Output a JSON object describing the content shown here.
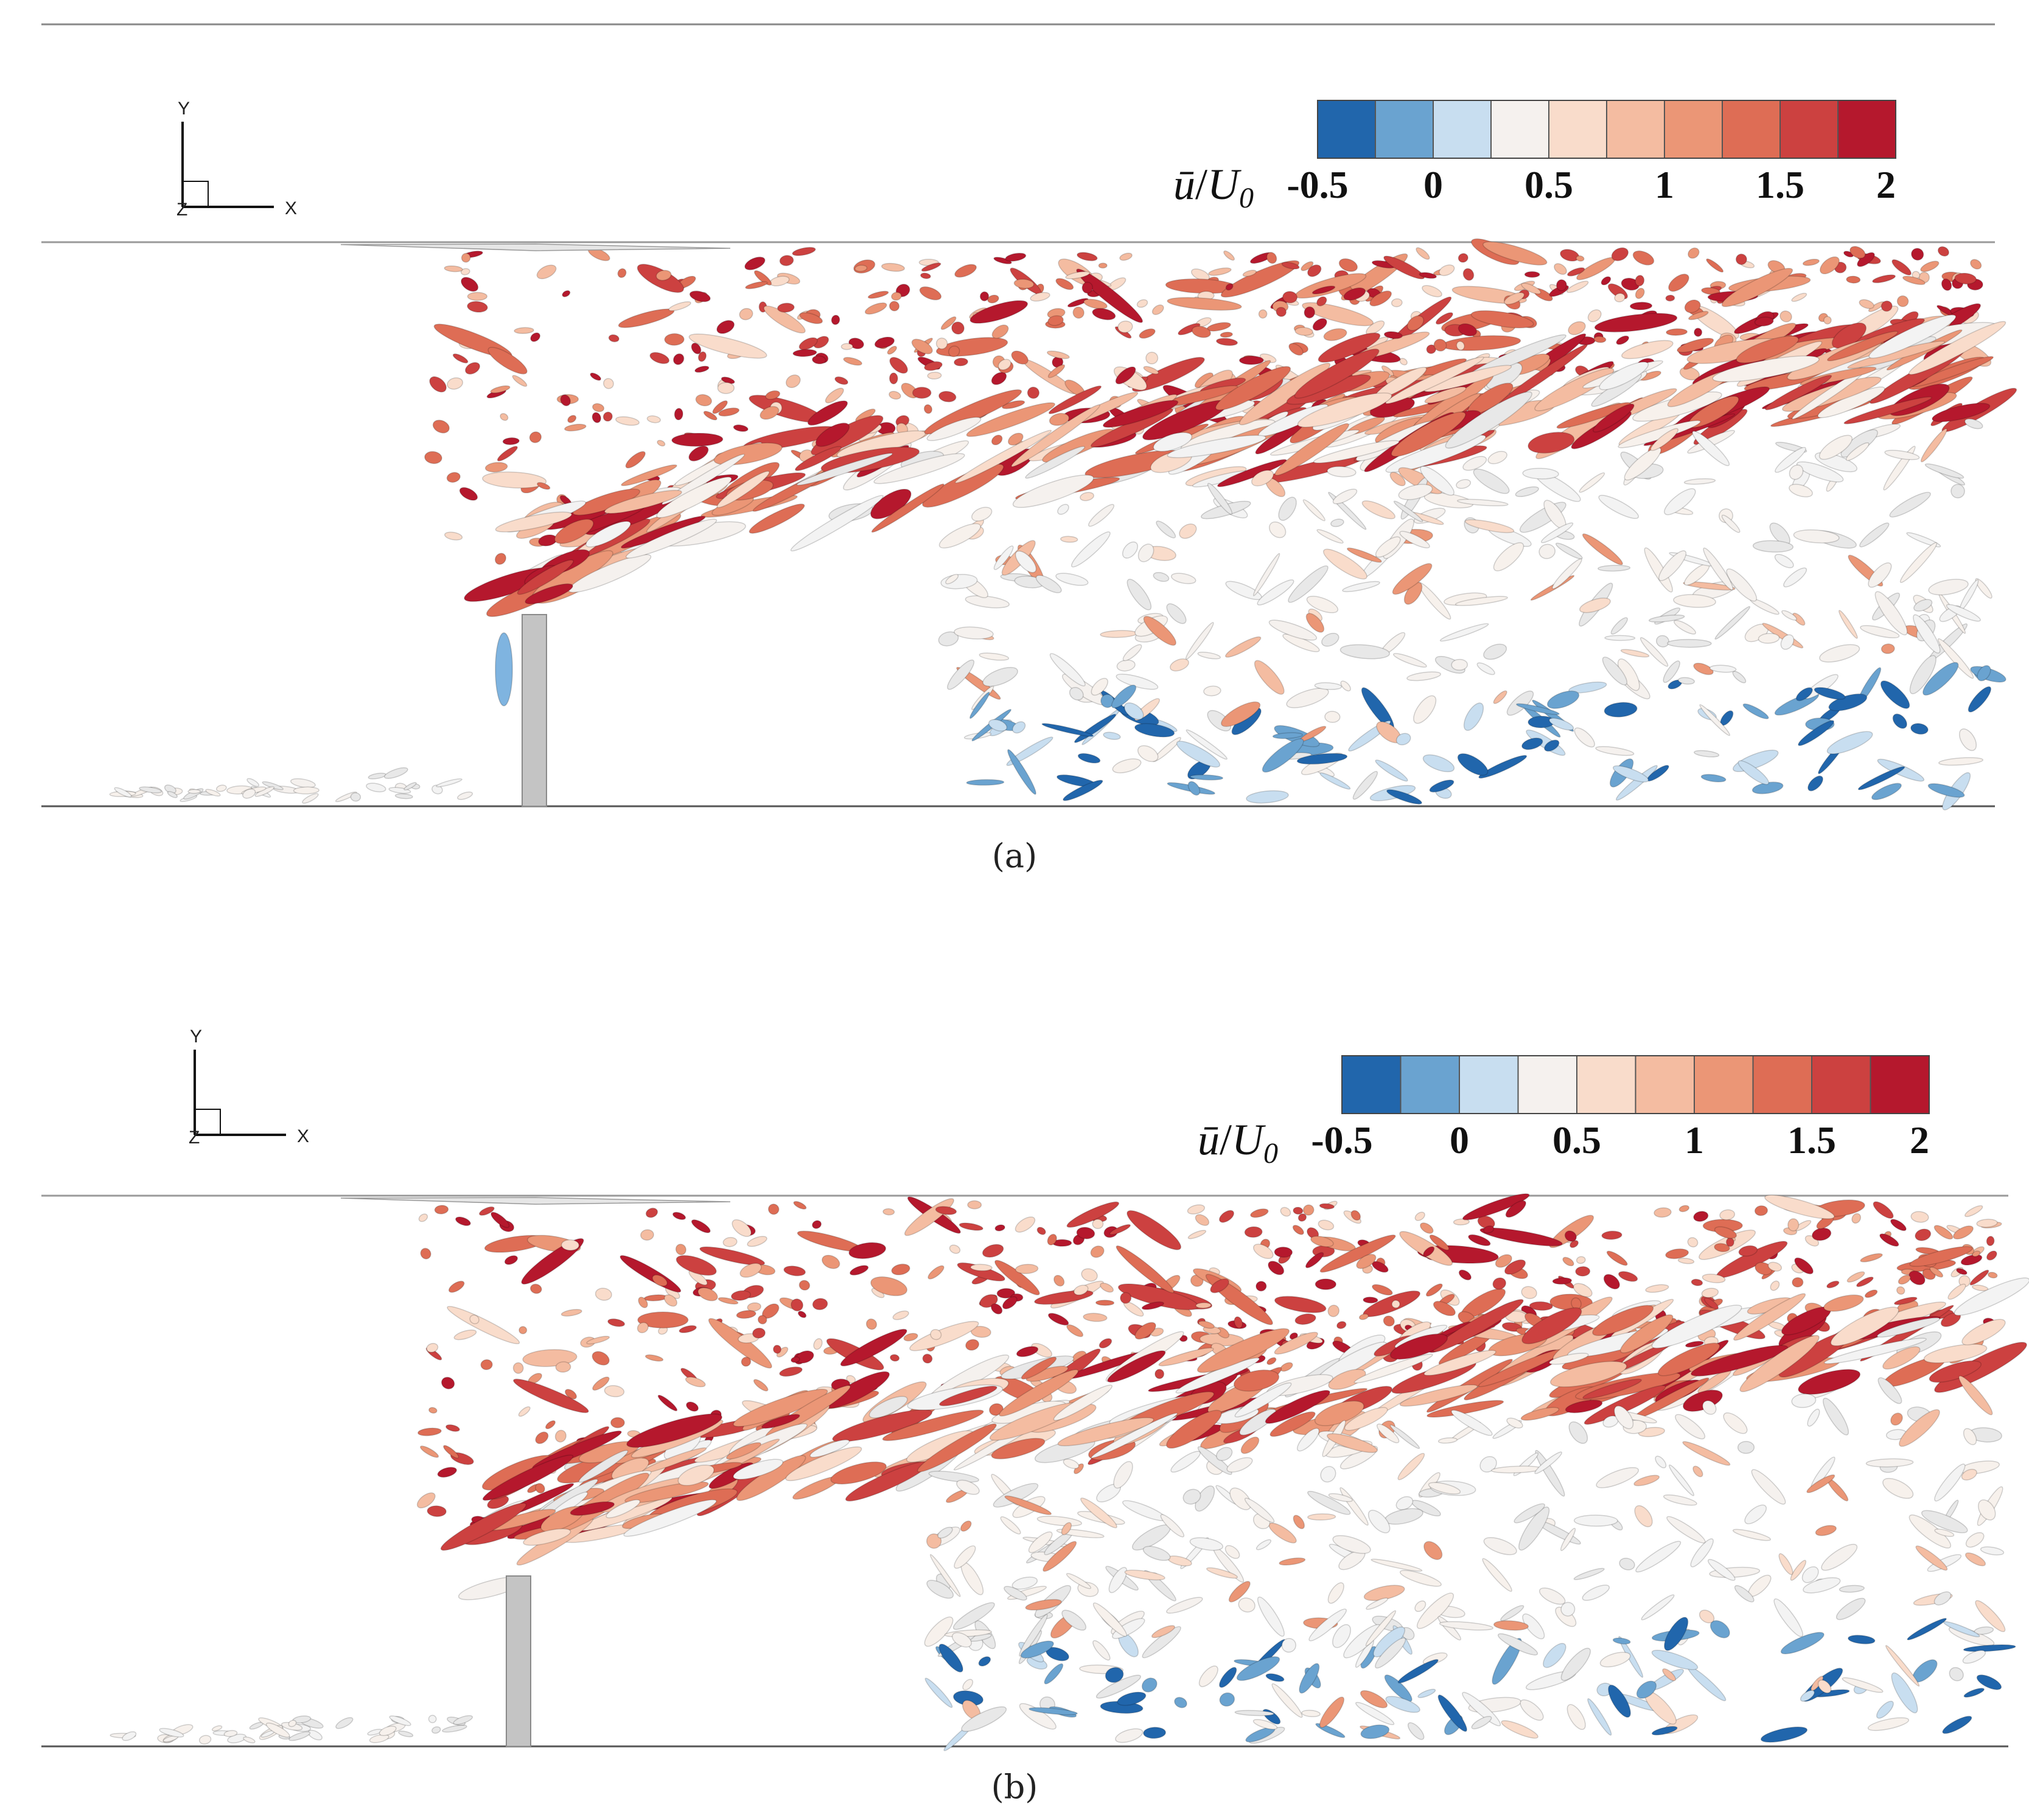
{
  "panels": [
    {
      "id": "a",
      "caption": "(a)",
      "axes_triad": {
        "y_label": "Y",
        "x_label": "X",
        "z_label": "Z"
      },
      "colorbar": {
        "label_u": "ū",
        "label_sep": "/",
        "label_U": "U",
        "label_sub": "0",
        "ticks": [
          "-0.5",
          "0",
          "0.5",
          "1",
          "1.5",
          "2"
        ],
        "range": [
          -0.5,
          2
        ],
        "levels": 10
      }
    },
    {
      "id": "b",
      "caption": "(b)",
      "axes_triad": {
        "y_label": "Y",
        "x_label": "X",
        "z_label": "Z"
      },
      "colorbar": {
        "label_u": "ū",
        "label_sep": "/",
        "label_U": "U",
        "label_sub": "0",
        "ticks": [
          "-0.5",
          "0",
          "0.5",
          "1",
          "1.5",
          "2"
        ],
        "range": [
          -0.5,
          2
        ],
        "levels": 10
      }
    }
  ],
  "colors": {
    "cmap": [
      "#2166ac",
      "#6aa3d0",
      "#c8def0",
      "#f5f1ee",
      "#f9dccb",
      "#f4bca1",
      "#eb9676",
      "#de6d55",
      "#cc4140",
      "#b5182d"
    ],
    "body": "#c4c4c4",
    "frame": "#9a9a9a"
  }
}
